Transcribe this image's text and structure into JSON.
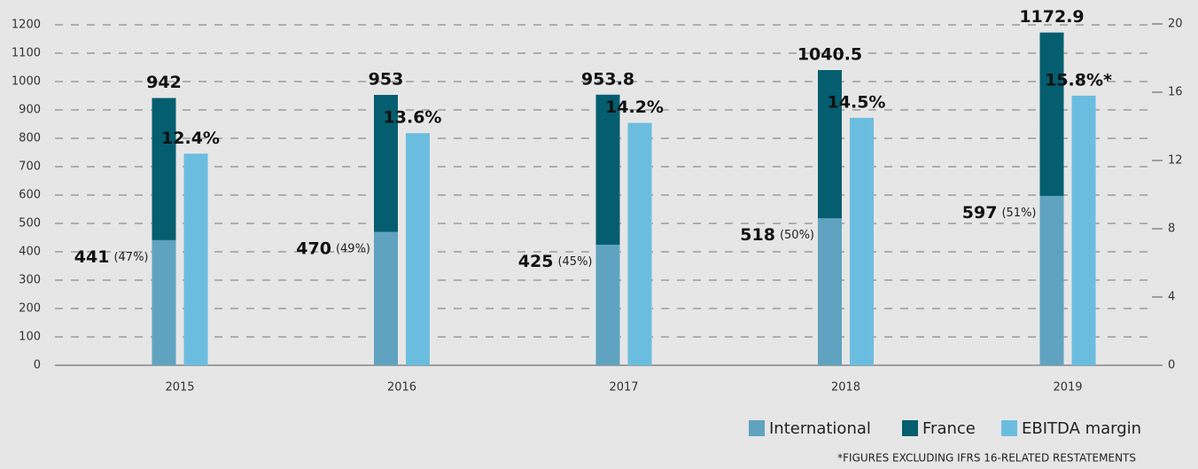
{
  "chart_data": {
    "type": "bar",
    "categories": [
      "2015",
      "2016",
      "2017",
      "2018",
      "2019"
    ],
    "series": [
      {
        "name": "International",
        "color": "#5fa3c1",
        "values": [
          441,
          470,
          425,
          518,
          597
        ],
        "shares": [
          {
            "value": 47,
            "label": "(47%)"
          },
          {
            "value": 49,
            "label": "(49%)"
          },
          {
            "value": 45,
            "label": "(45%)"
          },
          {
            "value": 50,
            "label": "(50%)"
          },
          {
            "value": 51,
            "label": "(51%)"
          }
        ]
      },
      {
        "name": "France",
        "color": "#045e6f",
        "values": [
          501,
          483,
          528.8,
          522.5,
          575.9
        ]
      },
      {
        "name": "EBITDA margin",
        "color": "#6bbde0",
        "axis": "y2",
        "values": [
          12.4,
          13.6,
          14.2,
          14.5,
          15.8
        ],
        "value_labels": [
          "12.4%",
          "13.6%",
          "14.2%",
          "14.5%",
          "15.8%*"
        ]
      }
    ],
    "totals": [
      942,
      953,
      953.8,
      1040.5,
      1172.9
    ],
    "ylim": [
      0,
      1200
    ],
    "yticks": [
      0,
      100,
      200,
      300,
      400,
      500,
      600,
      700,
      800,
      900,
      1000,
      1100,
      1200
    ],
    "y2lim": [
      0,
      20
    ],
    "y2ticks": [
      0,
      4,
      8,
      12,
      16,
      20
    ],
    "grid": true,
    "footnote": "*FIGURES EXCLUDING IFRS 16-RELATED RESTATEMENTS"
  }
}
